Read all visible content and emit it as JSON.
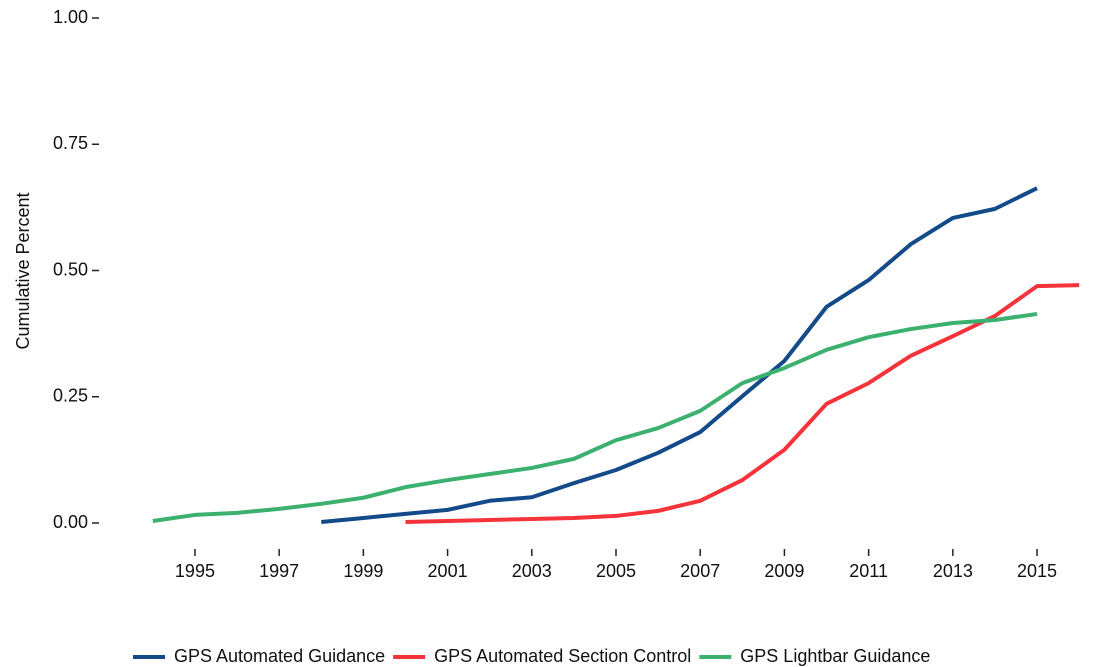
{
  "chart_data": {
    "type": "line",
    "y_label": "Cumulative Percent",
    "x": [
      1994,
      1995,
      1996,
      1997,
      1998,
      1999,
      2000,
      2001,
      2002,
      2003,
      2004,
      2005,
      2006,
      2007,
      2008,
      2009,
      2010,
      2011,
      2012,
      2013,
      2014,
      2015,
      2016
    ],
    "series": [
      {
        "name": "GPS Automated Guidance",
        "color": "#134a8a",
        "values": [
          null,
          null,
          null,
          null,
          0.002,
          0.01,
          0.018,
          0.026,
          0.044,
          0.051,
          0.079,
          0.105,
          0.139,
          0.18,
          0.251,
          0.321,
          0.428,
          0.481,
          0.552,
          0.604,
          0.622,
          0.663,
          null
        ]
      },
      {
        "name": "GPS Automated Section Control",
        "color": "#f5333a",
        "values": [
          null,
          null,
          null,
          null,
          null,
          null,
          0.002,
          0.004,
          0.006,
          0.008,
          0.01,
          0.014,
          0.024,
          0.044,
          0.085,
          0.145,
          0.236,
          0.277,
          0.331,
          0.37,
          0.41,
          0.469,
          0.471
        ]
      },
      {
        "name": "GPS Lightbar Guidance",
        "color": "#3cb06e",
        "values": [
          0.004,
          0.016,
          0.02,
          0.028,
          0.038,
          0.05,
          0.071,
          0.085,
          0.097,
          0.109,
          0.127,
          0.164,
          0.188,
          0.222,
          0.277,
          0.307,
          0.343,
          0.368,
          0.384,
          0.396,
          0.402,
          0.414,
          null
        ]
      }
    ],
    "xlim": [
      1993.6,
      2016.4
    ],
    "xticks": [
      1995,
      1997,
      1999,
      2001,
      2003,
      2005,
      2007,
      2009,
      2011,
      2013,
      2015
    ],
    "ylim": [
      0,
      1
    ],
    "yticks": [
      {
        "value": 0,
        "label": "0.00"
      },
      {
        "value": 0.25,
        "label": "0.25"
      },
      {
        "value": 0.5,
        "label": "0.50"
      },
      {
        "value": 0.75,
        "label": "0.75"
      },
      {
        "value": 1,
        "label": "1.00"
      }
    ],
    "grid": false,
    "legend": "bottom"
  }
}
